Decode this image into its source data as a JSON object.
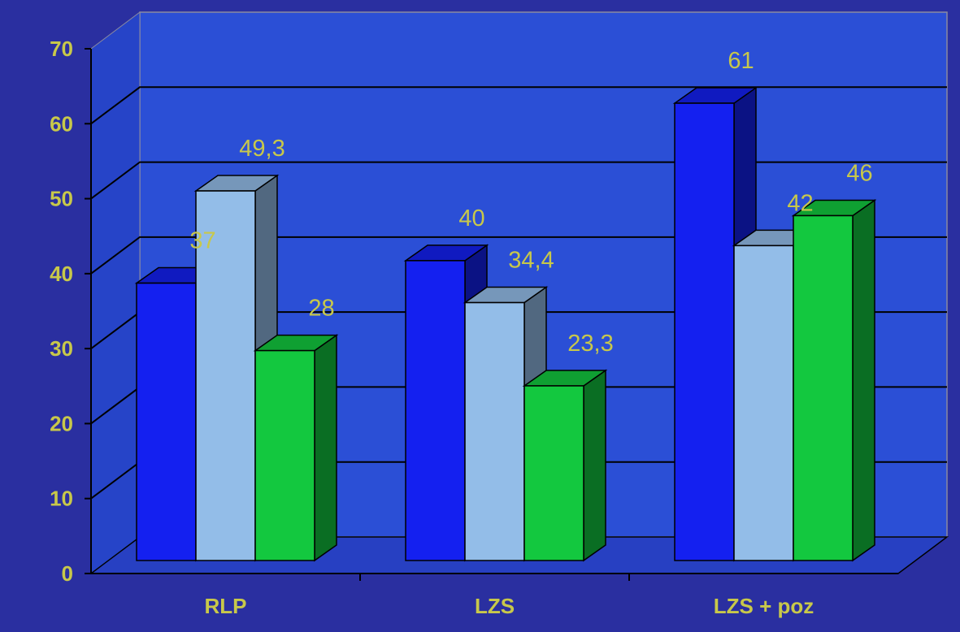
{
  "colors": {
    "background": "#2a2fa0",
    "plot_wall": "#2b4fd6",
    "series_1": "#1420f0",
    "series_2": "#93bde8",
    "series_3": "#13c83f",
    "text": "#c8c84a",
    "grid": "#000000"
  },
  "chart_data": {
    "type": "bar",
    "style": "3d-clustered",
    "categories": [
      "RLP",
      "LZS",
      "LZS + poz"
    ],
    "series": [
      {
        "values": [
          37,
          40,
          61
        ],
        "labels": [
          "37",
          "40",
          "61"
        ],
        "color": "#1420f0"
      },
      {
        "values": [
          49.3,
          34.4,
          42
        ],
        "labels": [
          "49,3",
          "34,4",
          "42"
        ],
        "color": "#93bde8"
      },
      {
        "values": [
          28,
          23.3,
          46
        ],
        "labels": [
          "28",
          "23,3",
          "46"
        ],
        "color": "#13c83f"
      }
    ],
    "y_ticks": [
      "0",
      "10",
      "20",
      "30",
      "40",
      "50",
      "60",
      "70"
    ],
    "ylim": [
      0,
      70
    ],
    "grid": true,
    "legend": "none"
  }
}
